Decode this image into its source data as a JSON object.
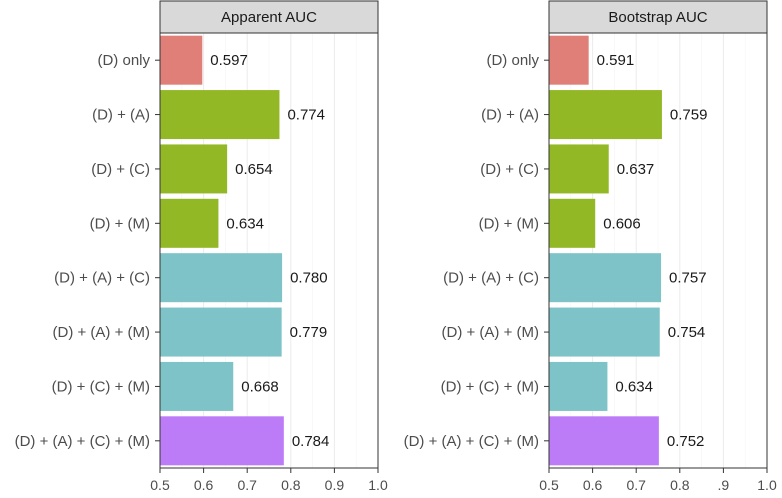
{
  "chart_data": {
    "type": "bar",
    "orientation": "horizontal",
    "categories": [
      "(D) only",
      "(D) + (A)",
      "(D) + (C)",
      "(D) + (M)",
      "(D) + (A) + (C)",
      "(D) + (A) + (M)",
      "(D) + (C) + (M)",
      "(D) + (A) + (C) + (M)"
    ],
    "group_colors": [
      "#e07f78",
      "#93b826",
      "#93b826",
      "#93b826",
      "#7dc3c7",
      "#7dc3c7",
      "#7dc3c7",
      "#bc7cf7"
    ],
    "xlim": [
      0.5,
      1.0
    ],
    "panels": [
      {
        "title": "Apparent AUC",
        "values": [
          0.597,
          0.774,
          0.654,
          0.634,
          0.78,
          0.779,
          0.668,
          0.784
        ],
        "labels": [
          "0.597",
          "0.774",
          "0.654",
          "0.634",
          "0.780",
          "0.779",
          "0.668",
          "0.784"
        ],
        "ticks": [
          {
            "value": 0.5,
            "label": "0.5"
          },
          {
            "value": 0.6,
            "label": "0.6"
          },
          {
            "value": 0.7,
            "label": "0.7"
          },
          {
            "value": 0.8,
            "label": "0.8"
          },
          {
            "value": 0.9,
            "label": "0.9"
          },
          {
            "value": 1.0,
            "label": "1.0"
          }
        ]
      },
      {
        "title": "Bootstrap AUC",
        "values": [
          0.591,
          0.759,
          0.637,
          0.606,
          0.757,
          0.754,
          0.634,
          0.752
        ],
        "labels": [
          "0.591",
          "0.759",
          "0.637",
          "0.606",
          "0.757",
          "0.754",
          "0.634",
          "0.752"
        ],
        "ticks": [
          {
            "value": 0.5,
            "label": "0.5"
          },
          {
            "value": 0.6,
            "label": "0.6"
          },
          {
            "value": 0.7,
            "label": "0.7"
          },
          {
            "value": 0.8,
            "label": "0.8"
          },
          {
            "value": 0.9,
            "label": ".9"
          },
          {
            "value": 1.0,
            "label": "1.0"
          }
        ]
      }
    ],
    "grid": true
  }
}
